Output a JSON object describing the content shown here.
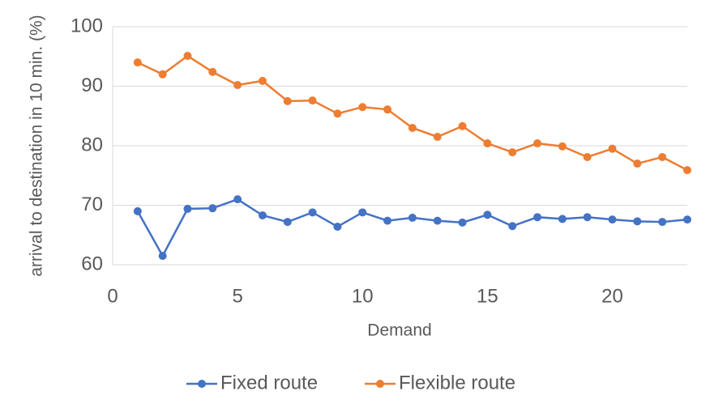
{
  "chart_data": {
    "type": "line",
    "x_label": "Demand",
    "y_label": "arrival to destination in 10 min. (%)",
    "x": [
      1,
      2,
      3,
      4,
      5,
      6,
      7,
      8,
      9,
      10,
      11,
      12,
      13,
      14,
      15,
      16,
      17,
      18,
      19,
      20,
      21,
      22,
      23
    ],
    "series": [
      {
        "name": "Fixed route",
        "color": "#4472c4",
        "values": [
          69.0,
          61.5,
          69.4,
          69.5,
          71.0,
          68.3,
          67.2,
          68.8,
          66.4,
          68.8,
          67.4,
          67.9,
          67.4,
          67.1,
          68.4,
          66.5,
          68.0,
          67.7,
          68.0,
          67.6,
          67.3,
          67.2,
          67.6
        ]
      },
      {
        "name": "Flexible route",
        "color": "#ed7d31",
        "values": [
          94.0,
          92.0,
          95.1,
          92.4,
          90.2,
          90.9,
          87.5,
          87.6,
          85.4,
          86.5,
          86.1,
          83.0,
          81.5,
          83.3,
          80.4,
          78.9,
          80.4,
          79.9,
          78.1,
          79.5,
          77.0,
          78.1,
          75.9
        ]
      }
    ],
    "xlim": [
      0,
      23
    ],
    "xticks": [
      0,
      5,
      10,
      15,
      20
    ],
    "ylim": [
      60,
      100
    ],
    "yticks": [
      60,
      70,
      80,
      90,
      100
    ],
    "grid": true,
    "legend": "bottom"
  }
}
